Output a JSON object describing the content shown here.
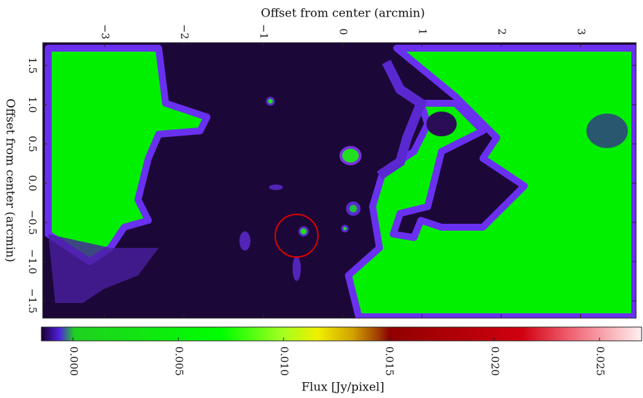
{
  "chart_data": {
    "type": "heatmap",
    "x_label": "Offset from center (arcmin)",
    "y_label": "Offset from center (arcmin)",
    "xlim": [
      -3.78,
      3.7
    ],
    "ylim": [
      -1.72,
      1.79
    ],
    "xticks": [
      {
        "value": -3,
        "label": "−3"
      },
      {
        "value": -2,
        "label": "−2"
      },
      {
        "value": -1,
        "label": "−1"
      },
      0,
      1,
      2,
      3
    ],
    "yticks": [
      1.5,
      {
        "value": 1,
        "label": "1.0"
      },
      0.5,
      {
        "value": 0,
        "label": "0.0"
      },
      {
        "value": -0.5,
        "label": "−0.5"
      },
      {
        "value": -1,
        "label": "−1.0"
      },
      {
        "value": -1.5,
        "label": "−1.5"
      }
    ],
    "colorbar_label": "Flux [Jy/pixel]",
    "clim": [
      -0.0015,
      0.027
    ],
    "cticks": [
      {
        "value": 0,
        "label": "0.000"
      },
      {
        "value": 0.005,
        "label": "0.005"
      },
      {
        "value": 0.01,
        "label": "0.010"
      },
      {
        "value": 0.015,
        "label": "0.015"
      },
      {
        "value": 0.02,
        "label": "0.020"
      },
      {
        "value": 0.025,
        "label": "0.025"
      }
    ],
    "marker": {
      "x": -0.58,
      "y": -0.67,
      "color": "#e00000"
    }
  }
}
